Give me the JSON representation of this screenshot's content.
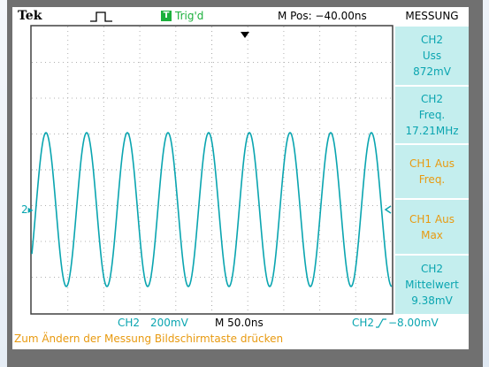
{
  "header": {
    "brand": "Tek",
    "trigger_icon": "T",
    "trigger_state": "Trig'd",
    "position": "M Pos: −40.00ns",
    "menu_title": "MESSUNG"
  },
  "measurements": [
    [
      "CH2",
      "Uss",
      "872mV"
    ],
    [
      "CH2",
      "Freq.",
      "17.21MHz"
    ],
    [
      "CH1 Aus",
      "Freq."
    ],
    [
      "CH1 Aus",
      "Max"
    ],
    [
      "CH2",
      "Mittelwert",
      "9.38mV"
    ]
  ],
  "markers": {
    "channel": "2"
  },
  "status": {
    "channel": "CH2",
    "scale": "200mV",
    "timebase": "M 50.0ns",
    "trigger_channel": "CH2",
    "trigger_level": "−8.00mV"
  },
  "footer": "Zum Ändern der Messung Bildschirmtaste drücken"
}
